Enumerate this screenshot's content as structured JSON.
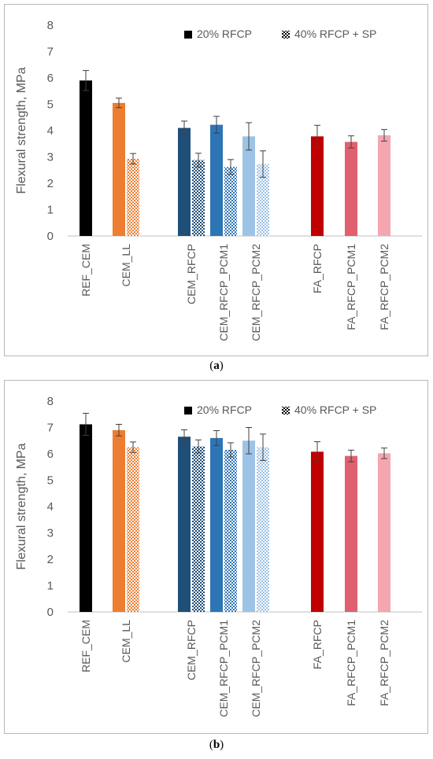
{
  "chart_data": [
    {
      "type": "bar",
      "panel_label": "a",
      "ylabel": "Flexural strength, MPa",
      "ylim": [
        0,
        8
      ],
      "yticks": [
        0,
        1,
        2,
        3,
        4,
        5,
        6,
        7,
        8
      ],
      "grid": false,
      "legend_position": "top-right",
      "legend": [
        "20% RFCP",
        "40% RFCP + SP"
      ],
      "groups": [
        {
          "category": "REF_CEM",
          "color": "#000000",
          "values": [
            5.9
          ],
          "errors": [
            0.38
          ]
        },
        {
          "category": "CEM_LL",
          "color": "#ED7D31",
          "values": [
            5.05,
            2.93
          ],
          "errors": [
            0.18,
            0.2
          ]
        },
        {
          "category": "CEM_RFCP",
          "color": "#1F4E79",
          "values": [
            4.1,
            2.88
          ],
          "errors": [
            0.26,
            0.26
          ]
        },
        {
          "category": "CEM_RFCP_PCM1",
          "color": "#2E75B6",
          "values": [
            4.22,
            2.62
          ],
          "errors": [
            0.32,
            0.28
          ]
        },
        {
          "category": "CEM_RFCP_PCM2",
          "color": "#9DC3E6",
          "values": [
            3.78,
            2.73
          ],
          "errors": [
            0.52,
            0.5
          ]
        },
        {
          "category": "FA_RFCP",
          "color": "#C00000",
          "values": [
            3.78
          ],
          "errors": [
            0.42
          ]
        },
        {
          "category": "FA_RFCP_PCM1",
          "color": "#E06070",
          "values": [
            3.57
          ],
          "errors": [
            0.23
          ]
        },
        {
          "category": "FA_RFCP_PCM2",
          "color": "#F4A7B0",
          "values": [
            3.82
          ],
          "errors": [
            0.22
          ]
        }
      ]
    },
    {
      "type": "bar",
      "panel_label": "b",
      "ylabel": "Flexural strength, MPa",
      "ylim": [
        0,
        8
      ],
      "yticks": [
        0,
        1,
        2,
        3,
        4,
        5,
        6,
        7,
        8
      ],
      "grid": false,
      "legend_position": "top-right",
      "legend": [
        "20% RFCP",
        "40% RFCP + SP"
      ],
      "groups": [
        {
          "category": "REF_CEM",
          "color": "#000000",
          "values": [
            7.12
          ],
          "errors": [
            0.42
          ]
        },
        {
          "category": "CEM_LL",
          "color": "#ED7D31",
          "values": [
            6.9,
            6.25
          ],
          "errors": [
            0.22,
            0.2
          ]
        },
        {
          "category": "CEM_RFCP",
          "color": "#1F4E79",
          "values": [
            6.65,
            6.28
          ],
          "errors": [
            0.26,
            0.25
          ]
        },
        {
          "category": "CEM_RFCP_PCM1",
          "color": "#2E75B6",
          "values": [
            6.6,
            6.15
          ],
          "errors": [
            0.28,
            0.27
          ]
        },
        {
          "category": "CEM_RFCP_PCM2",
          "color": "#9DC3E6",
          "values": [
            6.5,
            6.25
          ],
          "errors": [
            0.5,
            0.5
          ]
        },
        {
          "category": "FA_RFCP",
          "color": "#C00000",
          "values": [
            6.08
          ],
          "errors": [
            0.38
          ]
        },
        {
          "category": "FA_RFCP_PCM1",
          "color": "#E06070",
          "values": [
            5.92
          ],
          "errors": [
            0.22
          ]
        },
        {
          "category": "FA_RFCP_PCM2",
          "color": "#F4A7B0",
          "values": [
            6.02
          ],
          "errors": [
            0.2
          ]
        }
      ]
    }
  ]
}
